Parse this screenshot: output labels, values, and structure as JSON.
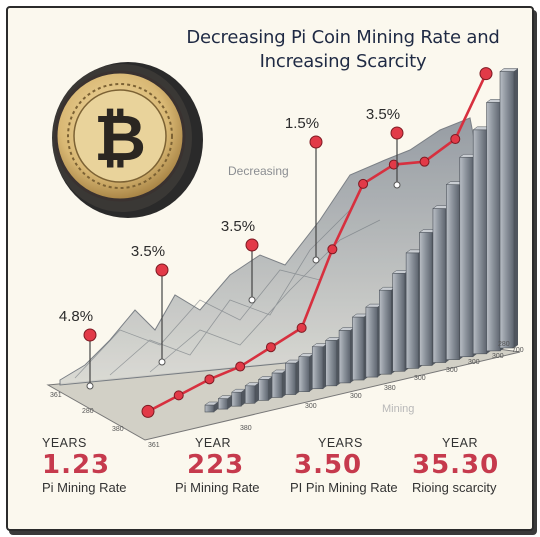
{
  "title": "Decreasing Pi Coin Mining Rate and Increasing Scarcity",
  "coin": {
    "symbol": "₿",
    "icon": "bitcoin-coin-icon"
  },
  "colors": {
    "line": "#d7303f",
    "point": "#e23a48",
    "bar": "#8a919b",
    "ridge": "#9aa0a8"
  },
  "chart_data": {
    "type": "bar",
    "title": "Decreasing Pi Coin Mining Rate and Increasing Scarcity",
    "annotation": "Decreasing",
    "watermark": "Mining",
    "bars": [
      2,
      3,
      4,
      5,
      6,
      7,
      9,
      10,
      12,
      13,
      15,
      18,
      20,
      24,
      28,
      33,
      38,
      44,
      50,
      57,
      64,
      71,
      79
    ],
    "line": [
      2,
      5,
      8,
      10,
      14,
      18,
      40,
      58,
      62,
      61,
      66,
      84
    ],
    "callouts": [
      {
        "label": "4.8%",
        "at": 0
      },
      {
        "label": "3.5%",
        "at": 3
      },
      {
        "label": "3.5%",
        "at": 5
      },
      {
        "label": "1.5%",
        "at": 6
      },
      {
        "label": "3.5%",
        "at": 9
      }
    ],
    "x_ticks": [
      "361",
      "280",
      "380",
      "361",
      "380",
      "300",
      "300",
      "380",
      "300",
      "300",
      "300",
      "300",
      "700",
      "280"
    ]
  },
  "summary": [
    {
      "year": "YEARS",
      "value": "1.23",
      "label": "Pi Mining Rate"
    },
    {
      "year": "YEAR",
      "value": "223",
      "label": "Pi Mining Rate"
    },
    {
      "year": "YEARS",
      "value": "3.50",
      "label": "PI Pin Mining Rate"
    },
    {
      "year": "YEAR",
      "value": "35.30",
      "label": "Rioing scarcity"
    }
  ]
}
